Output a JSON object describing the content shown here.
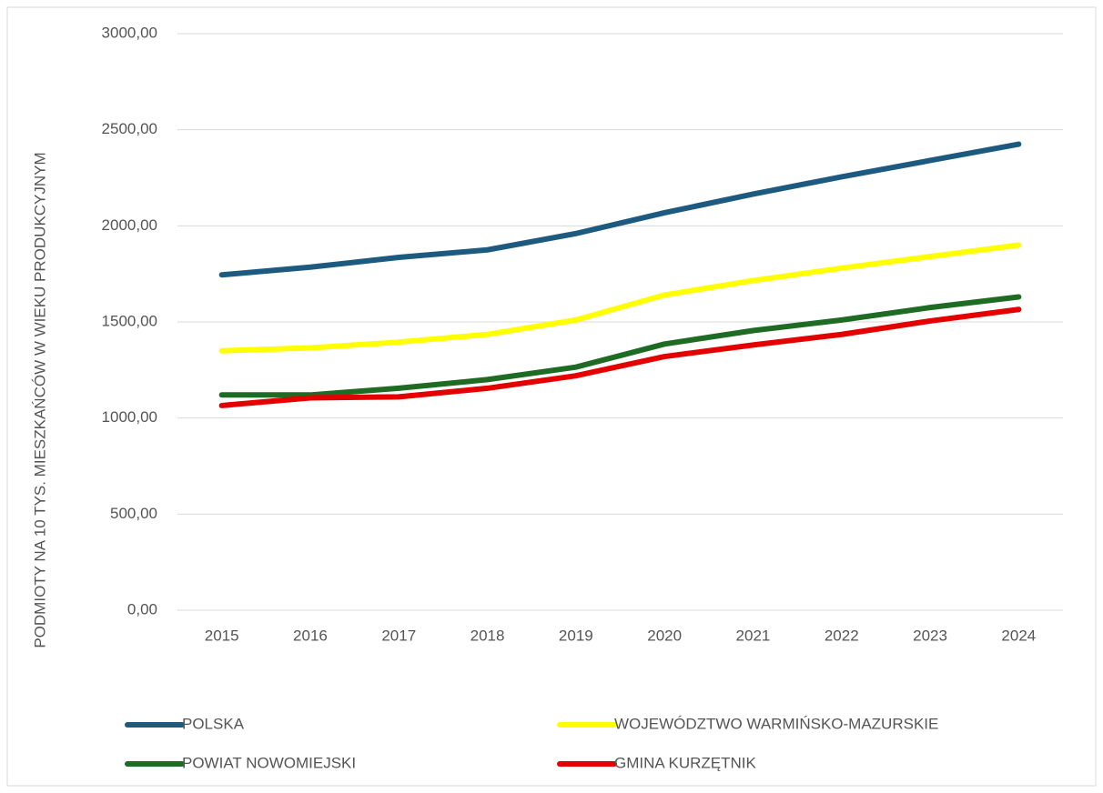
{
  "chart_data": {
    "type": "line",
    "y_label": "PODMIOTY NA 10 TYS. MIESZKAŃCÓW W WIEKU PRODUKCYJNYM",
    "categories": [
      "2015",
      "2016",
      "2017",
      "2018",
      "2019",
      "2020",
      "2021",
      "2022",
      "2023",
      "2024"
    ],
    "series": [
      {
        "name": "POLSKA",
        "color": "#1d5a80",
        "values": [
          1745,
          1785,
          1836,
          1875,
          1960,
          2068,
          2165,
          2255,
          2340,
          2425
        ]
      },
      {
        "name": "WOJEWÓDZTWO WARMIŃSKO-MAZURSKIE",
        "color": "#ffff00",
        "values": [
          1350,
          1365,
          1395,
          1435,
          1510,
          1640,
          1715,
          1780,
          1840,
          1900
        ]
      },
      {
        "name": "POWIAT NOWOMIEJSKI",
        "color": "#1e6b23",
        "values": [
          1120,
          1120,
          1155,
          1200,
          1265,
          1385,
          1455,
          1510,
          1575,
          1630
        ]
      },
      {
        "name": "GMINA KURZĘTNIK",
        "color": "#e50000",
        "values": [
          1065,
          1105,
          1110,
          1155,
          1220,
          1320,
          1380,
          1435,
          1505,
          1565
        ]
      }
    ],
    "ylim": [
      0,
      3000
    ],
    "yticks": [
      {
        "value": 0,
        "label": "0,00"
      },
      {
        "value": 500,
        "label": "500,00"
      },
      {
        "value": 1000,
        "label": "1000,00"
      },
      {
        "value": 1500,
        "label": "1500,00"
      },
      {
        "value": 2000,
        "label": "2000,00"
      },
      {
        "value": 2500,
        "label": "2500,00"
      },
      {
        "value": 3000,
        "label": "3000,00"
      }
    ],
    "grid": true
  }
}
